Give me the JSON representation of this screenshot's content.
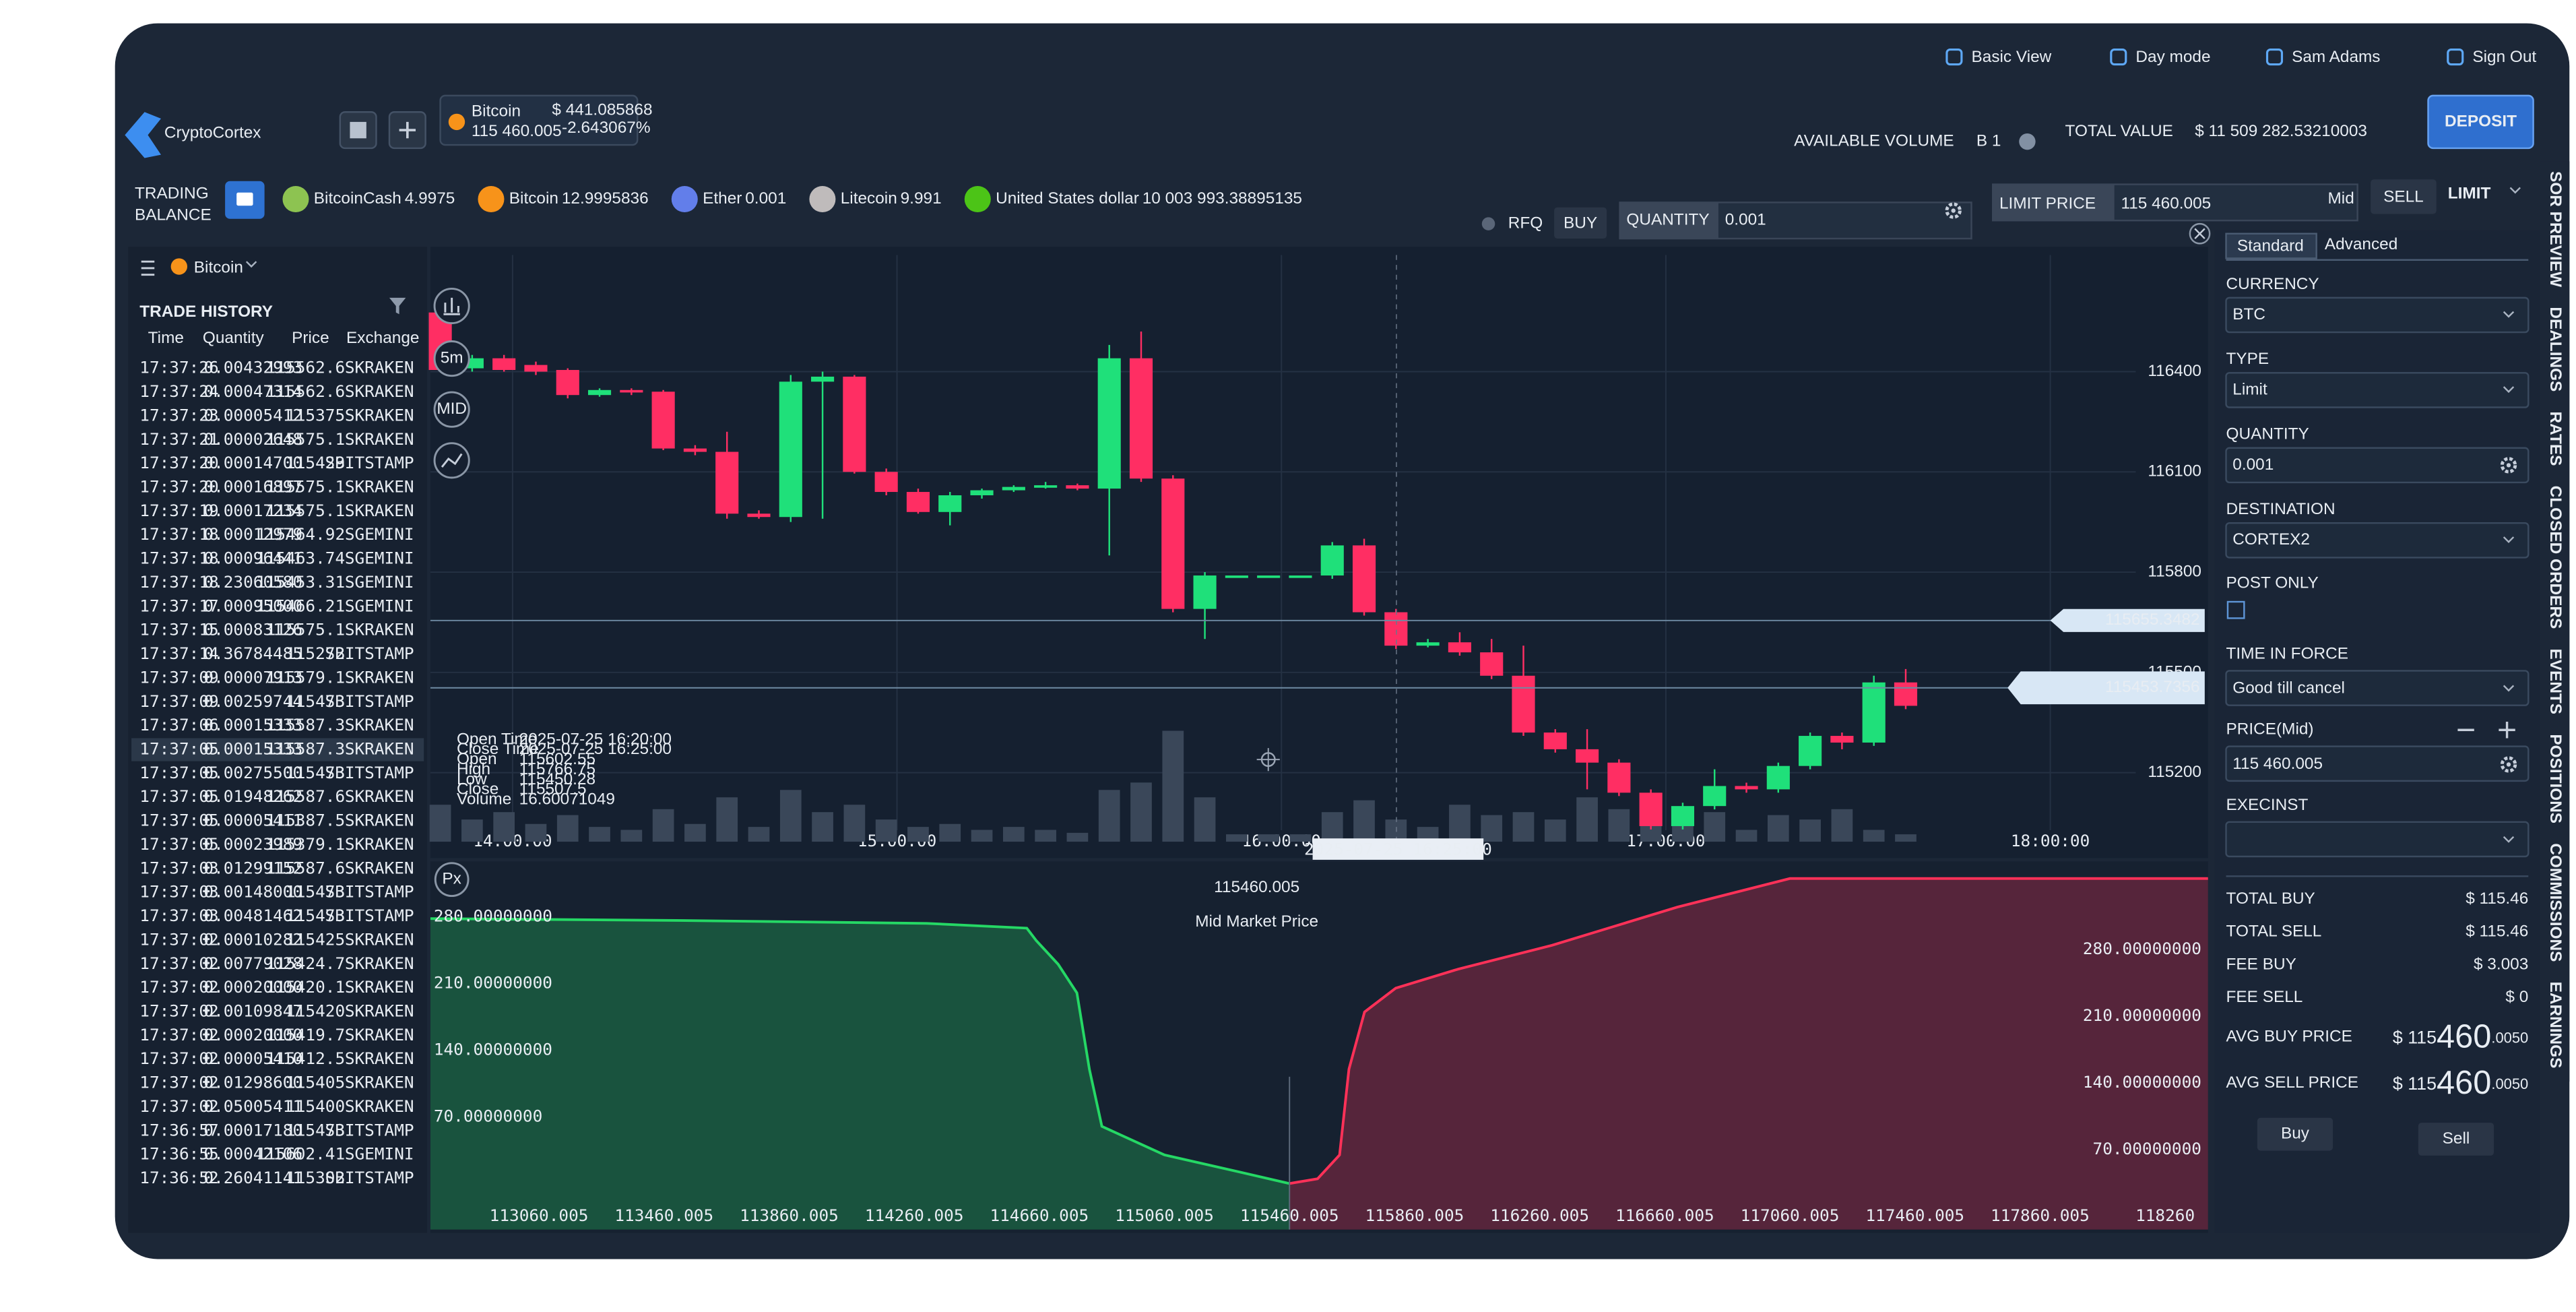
{
  "header": {
    "logo": "CryptoCortex",
    "links": [
      "Basic View",
      "Day mode",
      "Sam Adams",
      "Sign Out"
    ],
    "ticker": {
      "name": "Bitcoin",
      "price": "115 460.005",
      "change_abs": "$ 441.085868",
      "change_pct": "-2.643067%"
    },
    "available_volume_label": "AVAILABLE VOLUME",
    "available_volume": "B 1",
    "total_value_label": "TOTAL VALUE",
    "total_value": "$ 11 509 282.53210003",
    "deposit": "DEPOSIT"
  },
  "balance": {
    "label_lines": [
      "TRADING",
      "BALANCE"
    ],
    "items": [
      {
        "name": "BitcoinCash",
        "amount": "4.9975",
        "color": "#8dc351"
      },
      {
        "name": "Bitcoin",
        "amount": "12.9995836",
        "color": "#f7931a"
      },
      {
        "name": "Ether",
        "amount": "0.001",
        "color": "#627eea"
      },
      {
        "name": "Litecoin",
        "amount": "9.991",
        "color": "#bfbbbb"
      },
      {
        "name": "United States dollar",
        "amount": "10 003 993.38895135",
        "color": "#4cc417"
      }
    ]
  },
  "order_bar": {
    "rfq": "RFQ",
    "buy": "BUY",
    "quantity_label": "QUANTITY",
    "quantity": "0.001",
    "limit_price_label": "LIMIT PRICE",
    "limit_price": "115 460.005",
    "mid": "Mid",
    "sell": "SELL",
    "order_type": "LIMIT"
  },
  "instrument": "Bitcoin",
  "trade_history": {
    "title": "TRADE HISTORY",
    "columns": [
      "Time",
      "Quantity",
      "Price",
      "Exchange"
    ],
    "highlighted_row": 16,
    "rows": [
      {
        "cells": [
          "17:37:26",
          "0.00432993",
          "115562.6",
          "SKRAKEN"
        ],
        "color": "#27e07a"
      },
      {
        "cells": [
          "17:37:24",
          "0.00047314",
          "115562.6",
          "SKRAKEN"
        ],
        "color": "#27e07a"
      },
      {
        "cells": [
          "17:37:23",
          "0.00005412",
          "115375",
          "SKRAKEN"
        ],
        "color": "#ff3d6a"
      },
      {
        "cells": [
          "17:37:21",
          "0.00002648",
          "115575.1",
          "SKRAKEN"
        ],
        "color": "#27e07a"
      },
      {
        "cells": [
          "17:37:20",
          "0.00014700",
          "115429",
          "SBITSTAMP"
        ],
        "color": "#27e07a"
      },
      {
        "cells": [
          "17:37:20",
          "0.00016897",
          "115575.1",
          "SKRAKEN"
        ],
        "color": "#27e07a"
      },
      {
        "cells": [
          "17:37:19",
          "0.00017234",
          "115575.1",
          "SKRAKEN"
        ],
        "color": "#27e07a"
      },
      {
        "cells": [
          "17:37:18",
          "0.00012979",
          "115464.92",
          "SGEMINI"
        ],
        "color": "#ff3d6a"
      },
      {
        "cells": [
          "17:37:18",
          "0.00096441",
          "115463.74",
          "SGEMINI"
        ],
        "color": "#ff3d6a"
      },
      {
        "cells": [
          "17:37:18",
          "0.23060580",
          "115453.31",
          "SGEMINI"
        ],
        "color": "#ff3d6a"
      },
      {
        "cells": [
          "17:37:17",
          "0.00095000",
          "115466.21",
          "SGEMINI"
        ],
        "color": "#ff3d6a"
      },
      {
        "cells": [
          "17:37:15",
          "0.00083126",
          "115575.1",
          "SKRAKEN"
        ],
        "color": "#27e07a"
      },
      {
        "cells": [
          "17:37:14",
          "0.36784485",
          "115272",
          "SBITSTAMP"
        ],
        "color": "#ff3d6a"
      },
      {
        "cells": [
          "17:37:09",
          "0.00007913",
          "115579.1",
          "SKRAKEN"
        ],
        "color": "#27e07a"
      },
      {
        "cells": [
          "17:37:09",
          "0.00259744",
          "115473",
          "SBITSTAMP"
        ],
        "color": "#27e07a"
      },
      {
        "cells": [
          "17:37:06",
          "0.00015333",
          "115587.3",
          "SKRAKEN"
        ],
        "color": "#27e07a"
      },
      {
        "cells": [
          "17:37:05",
          "0.00015333",
          "115587.3",
          "SKRAKEN"
        ],
        "color": "#27e07a"
      },
      {
        "cells": [
          "17:37:05",
          "0.00275500",
          "115473",
          "SBITSTAMP"
        ],
        "color": "#27e07a"
      },
      {
        "cells": [
          "17:37:05",
          "0.01948262",
          "115587.6",
          "SKRAKEN"
        ],
        "color": "#27e07a"
      },
      {
        "cells": [
          "17:37:05",
          "0.00005411",
          "115387.5",
          "SKRAKEN"
        ],
        "color": "#ff3d6a"
      },
      {
        "cells": [
          "17:37:05",
          "0.00023989",
          "115379.1",
          "SKRAKEN"
        ],
        "color": "#ff3d6a"
      },
      {
        "cells": [
          "17:37:03",
          "0.01299152",
          "115587.6",
          "SKRAKEN"
        ],
        "color": "#27e07a"
      },
      {
        "cells": [
          "17:37:03",
          "0.00148000",
          "115473",
          "SBITSTAMP"
        ],
        "color": "#27e07a"
      },
      {
        "cells": [
          "17:37:03",
          "0.00481462",
          "115473",
          "SBITSTAMP"
        ],
        "color": "#27e07a"
      },
      {
        "cells": [
          "17:37:02",
          "0.00010282",
          "115425",
          "SKRAKEN"
        ],
        "color": "#ff3d6a"
      },
      {
        "cells": [
          "17:37:02",
          "0.00779028",
          "115424.7",
          "SKRAKEN"
        ],
        "color": "#ff3d6a"
      },
      {
        "cells": [
          "17:37:02",
          "0.00020000",
          "115420.1",
          "SKRAKEN"
        ],
        "color": "#ff3d6a"
      },
      {
        "cells": [
          "17:37:02",
          "0.00109847",
          "115420",
          "SKRAKEN"
        ],
        "color": "#ff3d6a"
      },
      {
        "cells": [
          "17:37:02",
          "0.00020000",
          "115419.7",
          "SKRAKEN"
        ],
        "color": "#ff3d6a"
      },
      {
        "cells": [
          "17:37:02",
          "0.00005410",
          "115412.5",
          "SKRAKEN"
        ],
        "color": "#ff3d6a"
      },
      {
        "cells": [
          "17:37:02",
          "0.01298600",
          "115405",
          "SKRAKEN"
        ],
        "color": "#ff3d6a"
      },
      {
        "cells": [
          "17:37:02",
          "0.05005411",
          "115400",
          "SKRAKEN"
        ],
        "color": "#ff3d6a"
      },
      {
        "cells": [
          "17:36:57",
          "0.00017180",
          "115473",
          "SBITSTAMP"
        ],
        "color": "#27e07a"
      },
      {
        "cells": [
          "17:36:55",
          "0.00042106",
          "115602.41",
          "SGEMINI"
        ],
        "color": "#27e07a"
      },
      {
        "cells": [
          "17:36:52",
          "0.26041141",
          "115302",
          "SBITSTAMP"
        ],
        "color": "#ff3d6a"
      }
    ]
  },
  "price_chart": {
    "buttons": [
      "5m",
      "MID"
    ],
    "ylim": [
      114954,
      116749
    ],
    "yticks": [
      116400,
      116100,
      115800,
      115500,
      115200
    ],
    "xticks": [
      "14:00:00",
      "15:00:00",
      "16:00:00",
      "17:00:00",
      "18:00:00"
    ],
    "up_color": "#1fe07a",
    "down_color": "#ff2e63",
    "candles": {
      "open": [
        116577,
        116410,
        116440,
        116420,
        116405,
        116330,
        116345,
        116340,
        116170,
        116160,
        115975,
        115965,
        116370,
        116385,
        116100,
        116040,
        115980,
        116030,
        116045,
        116055,
        116060,
        116050,
        116440,
        116080,
        115690,
        115790,
        115790,
        115790,
        115790,
        115880,
        115680,
        115580,
        115590,
        115560,
        115490,
        115320,
        115270,
        115230,
        115140,
        115040,
        115100,
        115160,
        115150,
        115220,
        115310,
        115290,
        115470
      ],
      "high": [
        116620,
        116450,
        116450,
        116430,
        116410,
        116350,
        116350,
        116345,
        116180,
        116220,
        115985,
        116390,
        116400,
        116390,
        116110,
        116050,
        116040,
        116050,
        116060,
        116070,
        116065,
        116480,
        116520,
        116090,
        115800,
        115790,
        115790,
        115790,
        115890,
        115900,
        115690,
        115600,
        115620,
        115600,
        115580,
        115330,
        115330,
        115240,
        115150,
        115110,
        115210,
        115170,
        115230,
        115320,
        115320,
        115490,
        115510
      ],
      "low": [
        116400,
        116400,
        116400,
        116390,
        116320,
        116325,
        116330,
        116165,
        116150,
        115960,
        115960,
        115950,
        115960,
        116095,
        116030,
        115975,
        115940,
        116020,
        116040,
        116050,
        116045,
        115850,
        116070,
        115680,
        115600,
        115790,
        115790,
        115790,
        115780,
        115670,
        115570,
        115575,
        115550,
        115480,
        115310,
        115260,
        115150,
        115130,
        115030,
        115030,
        115090,
        115140,
        115140,
        115210,
        115270,
        115280,
        115390
      ],
      "close": [
        116405,
        116440,
        116405,
        116400,
        116330,
        116345,
        116338,
        116170,
        116160,
        115975,
        115965,
        116370,
        116385,
        116100,
        116040,
        115980,
        116030,
        116045,
        116055,
        116060,
        116050,
        116440,
        116080,
        115690,
        115790,
        115790,
        115790,
        115790,
        115880,
        115680,
        115580,
        115590,
        115560,
        115490,
        115320,
        115270,
        115230,
        115140,
        115040,
        115100,
        115160,
        115150,
        115220,
        115310,
        115290,
        115470,
        115400
      ]
    },
    "volume_color": "#3a4759",
    "vlim": [
      0,
      100
    ],
    "volume": [
      25,
      15,
      20,
      12,
      18,
      10,
      8,
      22,
      12,
      30,
      10,
      35,
      20,
      25,
      15,
      10,
      12,
      8,
      10,
      8,
      6,
      35,
      40,
      75,
      30,
      5,
      5,
      5,
      20,
      28,
      15,
      10,
      25,
      18,
      20,
      15,
      30,
      22,
      25,
      12,
      20,
      8,
      18,
      15,
      22,
      8,
      5
    ],
    "crosshair_label": "2025-07-25 16:25:00",
    "price_labels": [
      115655.3482,
      115453.7356
    ],
    "tooltip": [
      [
        "Open Time",
        "2025-07-25 16:20:00"
      ],
      [
        "Close Time",
        "2025-07-25 16:25:00"
      ],
      [
        "Open",
        "115602.55"
      ],
      [
        "High",
        "115766.75"
      ],
      [
        "Low",
        "115450.28"
      ],
      [
        "Close",
        "115507.5"
      ],
      [
        "Volume",
        "16.60071049"
      ]
    ]
  },
  "depth_chart": {
    "button": "Px",
    "mid_price": "115460.005",
    "mid_label": "Mid Market Price",
    "xlim": [
      112713,
      118397
    ],
    "xticks": [
      113060.005,
      113460.005,
      113860.005,
      114260.005,
      114660.005,
      115060.005,
      115460.005,
      115860.005,
      116260.005,
      116660.005,
      117060.005,
      117460.005,
      117860.005,
      118260
    ],
    "ylim": [
      0,
      330
    ],
    "yticks": [
      {
        "value": 280,
        "label": "280.00000000"
      },
      {
        "value": 210,
        "label": "210.00000000"
      },
      {
        "value": 140,
        "label": "140.00000000"
      },
      {
        "value": 70,
        "label": "70.00000000"
      }
    ],
    "y2ticks": [
      {
        "value": 280,
        "label": "280.00000000"
      },
      {
        "value": 210,
        "label": "210.00000000"
      },
      {
        "value": 140,
        "label": "140.00000000"
      },
      {
        "value": 70,
        "label": "70.00000000"
      }
    ],
    "series": [
      {
        "color": "#25d865",
        "x": [
          112713,
          113500,
          114300,
          114620,
          114650,
          114720,
          114780,
          114820,
          114860,
          115060,
          115300,
          115460
        ],
        "y": [
          278,
          276,
          273,
          268,
          255,
          230,
          200,
          120,
          60,
          30,
          12,
          0
        ]
      },
      {
        "color": "#ff3158",
        "x": [
          115460,
          115550,
          115620,
          115650,
          115700,
          115800,
          116000,
          116300,
          116500,
          116700,
          117060,
          118397
        ],
        "y": [
          0,
          5,
          30,
          120,
          180,
          205,
          225,
          250,
          270,
          290,
          320,
          320
        ]
      }
    ]
  },
  "order_form": {
    "tabs": [
      "Standard",
      "Advanced"
    ],
    "fields": [
      {
        "label": "CURRENCY",
        "value": "BTC"
      },
      {
        "label": "TYPE",
        "value": "Limit"
      },
      {
        "label": "QUANTITY",
        "value": "0.001"
      },
      {
        "label": "DESTINATION",
        "value": "CORTEX2"
      }
    ],
    "post_only": "POST ONLY",
    "time_in_force_label": "TIME IN FORCE",
    "time_in_force": "Good till cancel",
    "price_label": "PRICE",
    "price_source": "(Mid)",
    "price": "115 460.005",
    "execinst": "EXECINST",
    "totals": [
      [
        "TOTAL BUY",
        "$ 115.46"
      ],
      [
        "TOTAL SELL",
        "$ 115.46"
      ],
      [
        "FEE BUY",
        "$ 3.003"
      ],
      [
        "FEE SELL",
        "$ 0"
      ]
    ],
    "avg": [
      {
        "label": "AVG BUY PRICE",
        "prefix": "$ 115",
        "big": "460",
        "suffix": ".0050"
      },
      {
        "label": "AVG SELL PRICE",
        "prefix": "$ 115",
        "big": "460",
        "suffix": ".0050"
      }
    ],
    "buy": "Buy",
    "sell": "Sell"
  },
  "side_tabs": [
    "SOR PREVIEW",
    "DEALINGS",
    "RATES",
    "CLOSED ORDERS",
    "EVENTS",
    "POSITIONS",
    "COMMISSIONS",
    "EARNINGS"
  ]
}
